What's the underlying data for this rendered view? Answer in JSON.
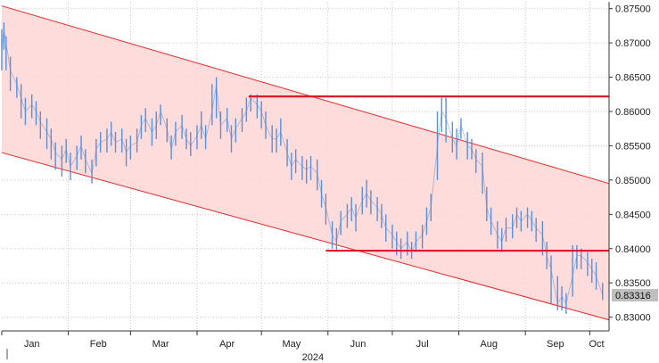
{
  "chart_data": {
    "type": "line",
    "title": "",
    "xlabel": "2024",
    "ylabel": "",
    "x_ticks": [
      "Jan",
      "Feb",
      "Mar",
      "Apr",
      "May",
      "Jun",
      "Jul",
      "Aug",
      "Sep",
      "Oct"
    ],
    "y_ticks": [
      "0.83000",
      "0.83500",
      "0.84000",
      "0.84500",
      "0.85000",
      "0.85500",
      "0.86000",
      "0.86500",
      "0.87000",
      "0.87500"
    ],
    "ylim": [
      0.828,
      0.876
    ],
    "xlim": [
      "2024-01-01",
      "2024-10-10"
    ],
    "grid": true,
    "last_value_label": "0.83316",
    "colors": {
      "series": "#5b8fd6",
      "channel_fill": "#ffd6d6",
      "channel_edge": "#e23a3a",
      "level_line": "#e0192a",
      "last_badge": "#bfbfbf"
    },
    "series": [
      {
        "x": [
          "2024-01-01",
          "2024-01-02",
          "2024-01-03",
          "2024-01-05",
          "2024-01-08",
          "2024-01-10",
          "2024-01-12",
          "2024-01-15",
          "2024-01-17",
          "2024-01-19",
          "2024-01-22",
          "2024-01-24",
          "2024-01-26",
          "2024-01-29",
          "2024-01-31",
          "2024-02-02",
          "2024-02-05",
          "2024-02-07",
          "2024-02-09",
          "2024-02-12",
          "2024-02-14",
          "2024-02-16",
          "2024-02-19",
          "2024-02-21",
          "2024-02-23",
          "2024-02-26",
          "2024-02-28",
          "2024-03-01",
          "2024-03-04",
          "2024-03-06",
          "2024-03-08",
          "2024-03-11",
          "2024-03-13",
          "2024-03-15",
          "2024-03-18",
          "2024-03-20",
          "2024-03-22",
          "2024-03-25",
          "2024-03-27",
          "2024-03-29",
          "2024-04-01",
          "2024-04-03",
          "2024-04-05",
          "2024-04-08",
          "2024-04-10",
          "2024-04-12",
          "2024-04-15",
          "2024-04-17",
          "2024-04-19",
          "2024-04-22",
          "2024-04-24",
          "2024-04-26",
          "2024-04-29",
          "2024-05-01",
          "2024-05-03",
          "2024-05-06",
          "2024-05-08",
          "2024-05-10",
          "2024-05-13",
          "2024-05-15",
          "2024-05-17",
          "2024-05-20",
          "2024-05-22",
          "2024-05-24",
          "2024-05-27",
          "2024-05-29",
          "2024-05-31",
          "2024-06-03",
          "2024-06-05",
          "2024-06-07",
          "2024-06-10",
          "2024-06-12",
          "2024-06-14",
          "2024-06-17",
          "2024-06-19",
          "2024-06-21",
          "2024-06-24",
          "2024-06-26",
          "2024-06-28",
          "2024-07-01",
          "2024-07-03",
          "2024-07-05",
          "2024-07-08",
          "2024-07-10",
          "2024-07-12",
          "2024-07-15",
          "2024-07-17",
          "2024-07-19",
          "2024-07-22",
          "2024-07-24",
          "2024-07-26",
          "2024-07-29",
          "2024-07-31",
          "2024-08-02",
          "2024-08-05",
          "2024-08-07",
          "2024-08-09",
          "2024-08-12",
          "2024-08-14",
          "2024-08-16",
          "2024-08-19",
          "2024-08-21",
          "2024-08-23",
          "2024-08-26",
          "2024-08-28",
          "2024-08-30",
          "2024-09-02",
          "2024-09-04",
          "2024-09-06",
          "2024-09-09",
          "2024-09-11",
          "2024-09-13",
          "2024-09-16",
          "2024-09-18",
          "2024-09-20",
          "2024-09-23",
          "2024-09-25",
          "2024-09-27",
          "2024-09-30",
          "2024-10-02",
          "2024-10-04",
          "2024-10-07"
        ],
        "y": [
          0.869,
          0.872,
          0.87,
          0.866,
          0.864,
          0.862,
          0.86,
          0.861,
          0.86,
          0.8585,
          0.857,
          0.856,
          0.854,
          0.853,
          0.8545,
          0.852,
          0.8535,
          0.855,
          0.853,
          0.851,
          0.8545,
          0.8555,
          0.856,
          0.857,
          0.8555,
          0.856,
          0.854,
          0.855,
          0.8555,
          0.858,
          0.859,
          0.857,
          0.858,
          0.86,
          0.8575,
          0.8545,
          0.857,
          0.858,
          0.856,
          0.855,
          0.8565,
          0.858,
          0.856,
          0.86,
          0.864,
          0.858,
          0.859,
          0.856,
          0.8575,
          0.859,
          0.86,
          0.862,
          0.861,
          0.86,
          0.858,
          0.856,
          0.856,
          0.857,
          0.854,
          0.852,
          0.853,
          0.852,
          0.8515,
          0.852,
          0.851,
          0.848,
          0.846,
          0.842,
          0.841,
          0.844,
          0.845,
          0.846,
          0.8445,
          0.847,
          0.848,
          0.847,
          0.846,
          0.845,
          0.843,
          0.842,
          0.841,
          0.84,
          0.841,
          0.8395,
          0.841,
          0.842,
          0.844,
          0.846,
          0.855,
          0.86,
          0.859,
          0.856,
          0.855,
          0.858,
          0.855,
          0.8545,
          0.853,
          0.852,
          0.846,
          0.844,
          0.842,
          0.841,
          0.843,
          0.843,
          0.845,
          0.844,
          0.845,
          0.844,
          0.843,
          0.842,
          0.839,
          0.837,
          0.832,
          0.833,
          0.832,
          0.836,
          0.839,
          0.839,
          0.838,
          0.837,
          0.836,
          0.8332
        ],
        "hi": [
          0.872,
          0.873,
          0.871,
          0.868,
          0.865,
          0.864,
          0.862,
          0.8625,
          0.8615,
          0.86,
          0.859,
          0.8575,
          0.8555,
          0.855,
          0.856,
          0.854,
          0.855,
          0.8565,
          0.8545,
          0.853,
          0.856,
          0.857,
          0.8575,
          0.8585,
          0.857,
          0.8575,
          0.856,
          0.8565,
          0.8575,
          0.8595,
          0.8605,
          0.859,
          0.86,
          0.861,
          0.859,
          0.8565,
          0.8585,
          0.8595,
          0.8575,
          0.857,
          0.858,
          0.86,
          0.858,
          0.864,
          0.865,
          0.86,
          0.8605,
          0.858,
          0.859,
          0.8605,
          0.862,
          0.8625,
          0.8625,
          0.8615,
          0.86,
          0.858,
          0.8575,
          0.859,
          0.856,
          0.854,
          0.8545,
          0.8535,
          0.853,
          0.8535,
          0.853,
          0.85,
          0.848,
          0.844,
          0.843,
          0.8455,
          0.8465,
          0.8475,
          0.8465,
          0.849,
          0.85,
          0.8485,
          0.8475,
          0.8465,
          0.845,
          0.8435,
          0.8425,
          0.8415,
          0.8425,
          0.841,
          0.8425,
          0.8435,
          0.846,
          0.848,
          0.86,
          0.862,
          0.862,
          0.8585,
          0.8575,
          0.859,
          0.857,
          0.856,
          0.8545,
          0.854,
          0.849,
          0.846,
          0.844,
          0.843,
          0.8445,
          0.845,
          0.846,
          0.8455,
          0.846,
          0.8455,
          0.8445,
          0.844,
          0.841,
          0.839,
          0.836,
          0.8345,
          0.8335,
          0.8405,
          0.8405,
          0.84,
          0.8395,
          0.8385,
          0.838,
          0.835
        ],
        "lo": [
          0.866,
          0.869,
          0.866,
          0.863,
          0.862,
          0.859,
          0.858,
          0.859,
          0.858,
          0.856,
          0.8545,
          0.853,
          0.8515,
          0.8505,
          0.8525,
          0.85,
          0.8515,
          0.853,
          0.851,
          0.8495,
          0.852,
          0.854,
          0.854,
          0.855,
          0.854,
          0.854,
          0.852,
          0.853,
          0.854,
          0.856,
          0.857,
          0.855,
          0.856,
          0.858,
          0.8555,
          0.853,
          0.855,
          0.856,
          0.8545,
          0.8535,
          0.8545,
          0.856,
          0.8545,
          0.858,
          0.859,
          0.856,
          0.857,
          0.854,
          0.8555,
          0.857,
          0.8585,
          0.86,
          0.859,
          0.8575,
          0.856,
          0.854,
          0.854,
          0.855,
          0.852,
          0.85,
          0.851,
          0.85,
          0.8495,
          0.85,
          0.8485,
          0.846,
          0.8435,
          0.84,
          0.8395,
          0.842,
          0.843,
          0.844,
          0.8425,
          0.845,
          0.846,
          0.845,
          0.844,
          0.843,
          0.841,
          0.84,
          0.839,
          0.8385,
          0.839,
          0.8385,
          0.8395,
          0.84,
          0.842,
          0.844,
          0.85,
          0.857,
          0.8555,
          0.854,
          0.853,
          0.856,
          0.853,
          0.853,
          0.851,
          0.848,
          0.844,
          0.842,
          0.84,
          0.8395,
          0.841,
          0.8415,
          0.843,
          0.8425,
          0.843,
          0.8425,
          0.841,
          0.839,
          0.837,
          0.832,
          0.831,
          0.831,
          0.8305,
          0.833,
          0.837,
          0.837,
          0.836,
          0.835,
          0.834,
          0.8325
        ]
      }
    ],
    "channel": {
      "upper": [
        [
          "2024-01-01",
          0.8754
        ],
        [
          "2024-10-10",
          0.8495
        ]
      ],
      "lower": [
        [
          "2024-01-01",
          0.854
        ],
        [
          "2024-10-10",
          0.8296
        ]
      ]
    },
    "levels": [
      {
        "y": 0.8622,
        "from": "2024-04-25",
        "to": "2024-10-10"
      },
      {
        "y": 0.8397,
        "from": "2024-05-31",
        "to": "2024-10-10"
      }
    ]
  }
}
